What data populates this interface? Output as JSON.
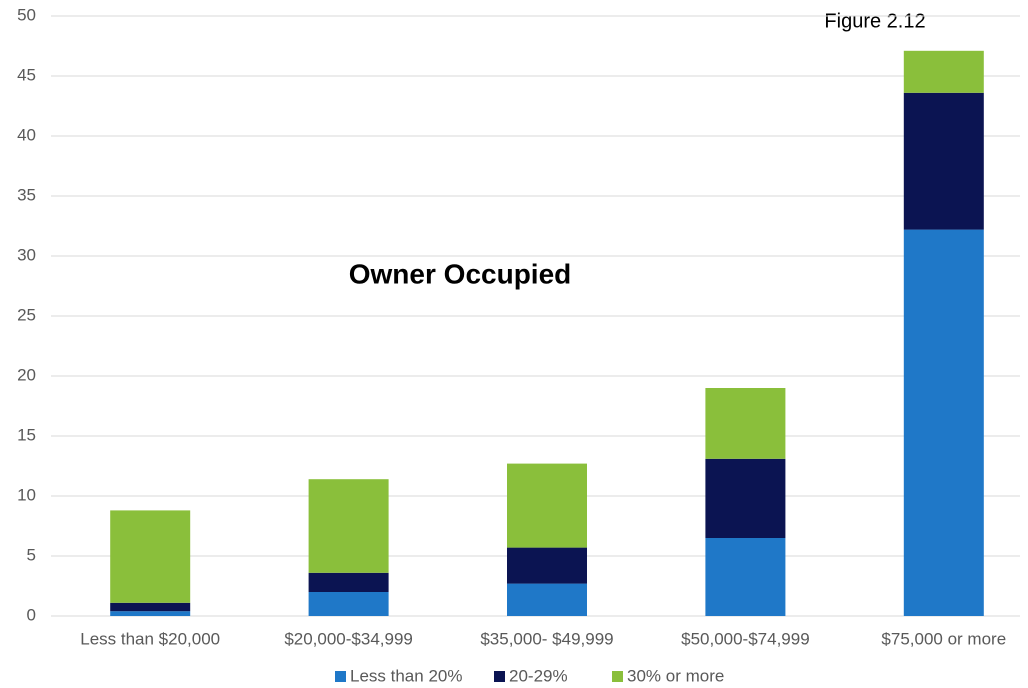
{
  "chart_data": {
    "type": "stacked_bar",
    "title": "Owner Occupied",
    "annotation": "Figure 2.12",
    "categories": [
      "Less than $20,000",
      "$20,000-$34,999",
      "$35,000- $49,999",
      "$50,000-$74,999",
      "$75,000 or more"
    ],
    "series": [
      {
        "name": "Less than 20%",
        "color": "#1f78c8",
        "values": [
          0.4,
          2.0,
          2.7,
          6.5,
          32.2
        ]
      },
      {
        "name": "20-29%",
        "color": "#0b1452",
        "values": [
          0.7,
          1.6,
          3.0,
          6.6,
          11.4
        ]
      },
      {
        "name": "30% or more",
        "color": "#8abf3b",
        "values": [
          7.7,
          7.8,
          7.0,
          5.9,
          3.5
        ]
      }
    ],
    "ylim": [
      0,
      50
    ],
    "yticks": [
      0,
      5,
      10,
      15,
      20,
      25,
      30,
      35,
      40,
      45,
      50
    ],
    "grid": true,
    "legend": "bottom"
  }
}
